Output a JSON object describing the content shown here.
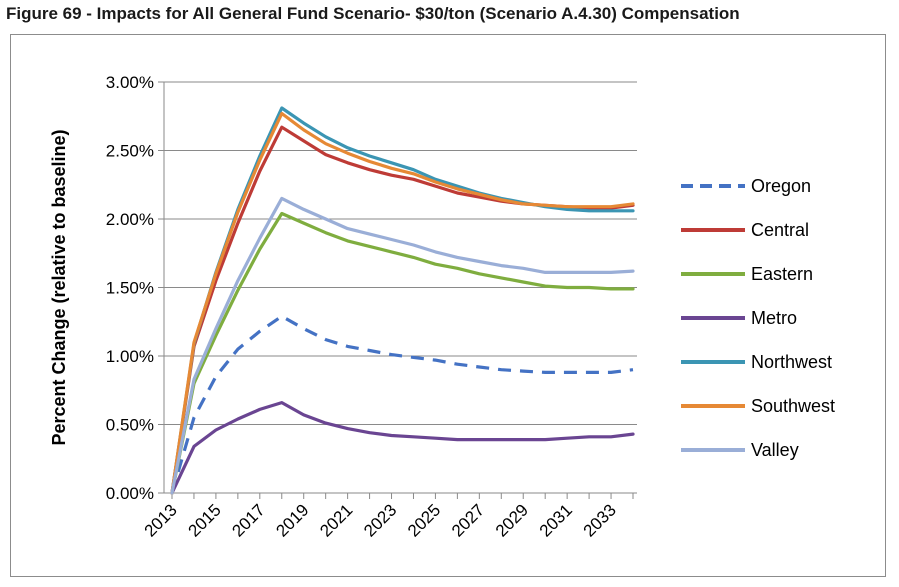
{
  "figure_title": "Figure 69 - Impacts for All General Fund Scenario- $30/ton (Scenario A.4.30) Compensation",
  "chart_data": {
    "type": "line",
    "title": "",
    "xlabel": "",
    "ylabel": "Percent Change (relative to baseline)",
    "x": [
      2013,
      2014,
      2015,
      2016,
      2017,
      2018,
      2019,
      2020,
      2021,
      2022,
      2023,
      2024,
      2025,
      2026,
      2027,
      2028,
      2029,
      2030,
      2031,
      2032,
      2033,
      2034
    ],
    "x_tick_labels": [
      "2013",
      "2015",
      "2017",
      "2019",
      "2021",
      "2023",
      "2025",
      "2027",
      "2029",
      "2031",
      "2033"
    ],
    "x_tick_values": [
      2013,
      2015,
      2017,
      2019,
      2021,
      2023,
      2025,
      2027,
      2029,
      2031,
      2033
    ],
    "ylim": [
      0,
      0.03
    ],
    "y_ticks": [
      0,
      0.005,
      0.01,
      0.015,
      0.02,
      0.025,
      0.03
    ],
    "y_tick_labels": [
      "0.00%",
      "0.50%",
      "1.00%",
      "1.50%",
      "2.00%",
      "2.50%",
      "3.00%"
    ],
    "grid": "horizontal",
    "legend_position": "right",
    "series": [
      {
        "name": "Oregon",
        "color": "#4472c4",
        "dash": true,
        "values": [
          0,
          0.0055,
          0.0085,
          0.0105,
          0.0118,
          0.0129,
          0.012,
          0.0112,
          0.0107,
          0.0104,
          0.0101,
          0.0099,
          0.0097,
          0.0094,
          0.0092,
          0.009,
          0.0089,
          0.0088,
          0.0088,
          0.0088,
          0.0088,
          0.009
        ]
      },
      {
        "name": "Central",
        "color": "#be3b36",
        "dash": false,
        "values": [
          0,
          0.0107,
          0.0155,
          0.0197,
          0.0235,
          0.0267,
          0.0257,
          0.0247,
          0.0241,
          0.0236,
          0.0232,
          0.0229,
          0.0224,
          0.0219,
          0.0216,
          0.0213,
          0.0211,
          0.021,
          0.0209,
          0.0208,
          0.0208,
          0.021
        ]
      },
      {
        "name": "Eastern",
        "color": "#7fad3f",
        "dash": false,
        "values": [
          0,
          0.008,
          0.0115,
          0.0148,
          0.0178,
          0.0204,
          0.0197,
          0.019,
          0.0184,
          0.018,
          0.0176,
          0.0172,
          0.0167,
          0.0164,
          0.016,
          0.0157,
          0.0154,
          0.0151,
          0.015,
          0.015,
          0.0149,
          0.0149
        ]
      },
      {
        "name": "Metro",
        "color": "#6a4592",
        "dash": false,
        "values": [
          0,
          0.0034,
          0.0046,
          0.0054,
          0.0061,
          0.0066,
          0.0057,
          0.0051,
          0.0047,
          0.0044,
          0.0042,
          0.0041,
          0.004,
          0.0039,
          0.0039,
          0.0039,
          0.0039,
          0.0039,
          0.004,
          0.0041,
          0.0041,
          0.0043
        ]
      },
      {
        "name": "Northwest",
        "color": "#3b95b3",
        "dash": false,
        "values": [
          0,
          0.0109,
          0.0161,
          0.0207,
          0.0246,
          0.0281,
          0.027,
          0.026,
          0.0252,
          0.0246,
          0.0241,
          0.0236,
          0.0229,
          0.0224,
          0.0219,
          0.0215,
          0.0212,
          0.0209,
          0.0207,
          0.0206,
          0.0206,
          0.0206
        ]
      },
      {
        "name": "Southwest",
        "color": "#e68935",
        "dash": false,
        "values": [
          0,
          0.011,
          0.016,
          0.0205,
          0.0243,
          0.0277,
          0.0265,
          0.0255,
          0.0248,
          0.0242,
          0.0237,
          0.0233,
          0.0227,
          0.0222,
          0.0218,
          0.0214,
          0.0211,
          0.021,
          0.0209,
          0.0209,
          0.0209,
          0.0211
        ]
      },
      {
        "name": "Valley",
        "color": "#9aaed7",
        "dash": false,
        "values": [
          0,
          0.0083,
          0.012,
          0.0155,
          0.0186,
          0.0215,
          0.0207,
          0.02,
          0.0193,
          0.0189,
          0.0185,
          0.0181,
          0.0176,
          0.0172,
          0.0169,
          0.0166,
          0.0164,
          0.0161,
          0.0161,
          0.0161,
          0.0161,
          0.0162
        ]
      }
    ]
  }
}
